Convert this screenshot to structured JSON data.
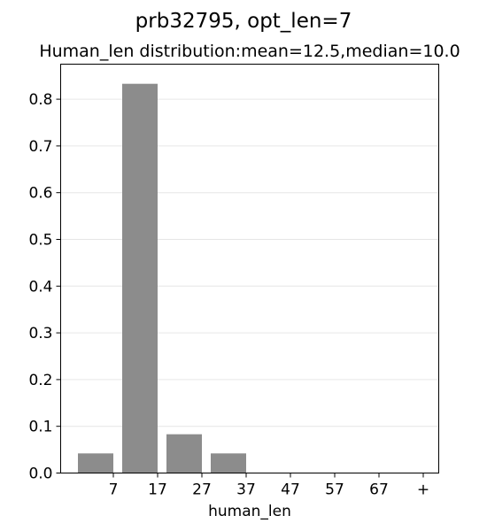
{
  "chart_data": {
    "type": "bar",
    "suptitle": "prb32795, opt_len=7",
    "title": "Human_len distribution:mean=12.5,median=10.0",
    "xlabel": "human_len",
    "ylabel": "",
    "x_tick_labels": [
      "7",
      "17",
      "27",
      "37",
      "47",
      "57",
      "67",
      "+"
    ],
    "y_tick_labels": [
      "0.0",
      "0.1",
      "0.2",
      "0.3",
      "0.4",
      "0.5",
      "0.6",
      "0.7",
      "0.8"
    ],
    "ylim": [
      0,
      0.875
    ],
    "grid": "horizontal",
    "bar_color": "#8c8c8c",
    "bars": [
      {
        "bin": "0-7",
        "value": 0.042
      },
      {
        "bin": "7-17",
        "value": 0.833
      },
      {
        "bin": "17-27",
        "value": 0.083
      },
      {
        "bin": "27-37",
        "value": 0.042
      },
      {
        "bin": "37-47",
        "value": 0.0
      },
      {
        "bin": "47-57",
        "value": 0.0
      },
      {
        "bin": "57-67",
        "value": 0.0
      },
      {
        "bin": "67+",
        "value": 0.0
      }
    ]
  }
}
